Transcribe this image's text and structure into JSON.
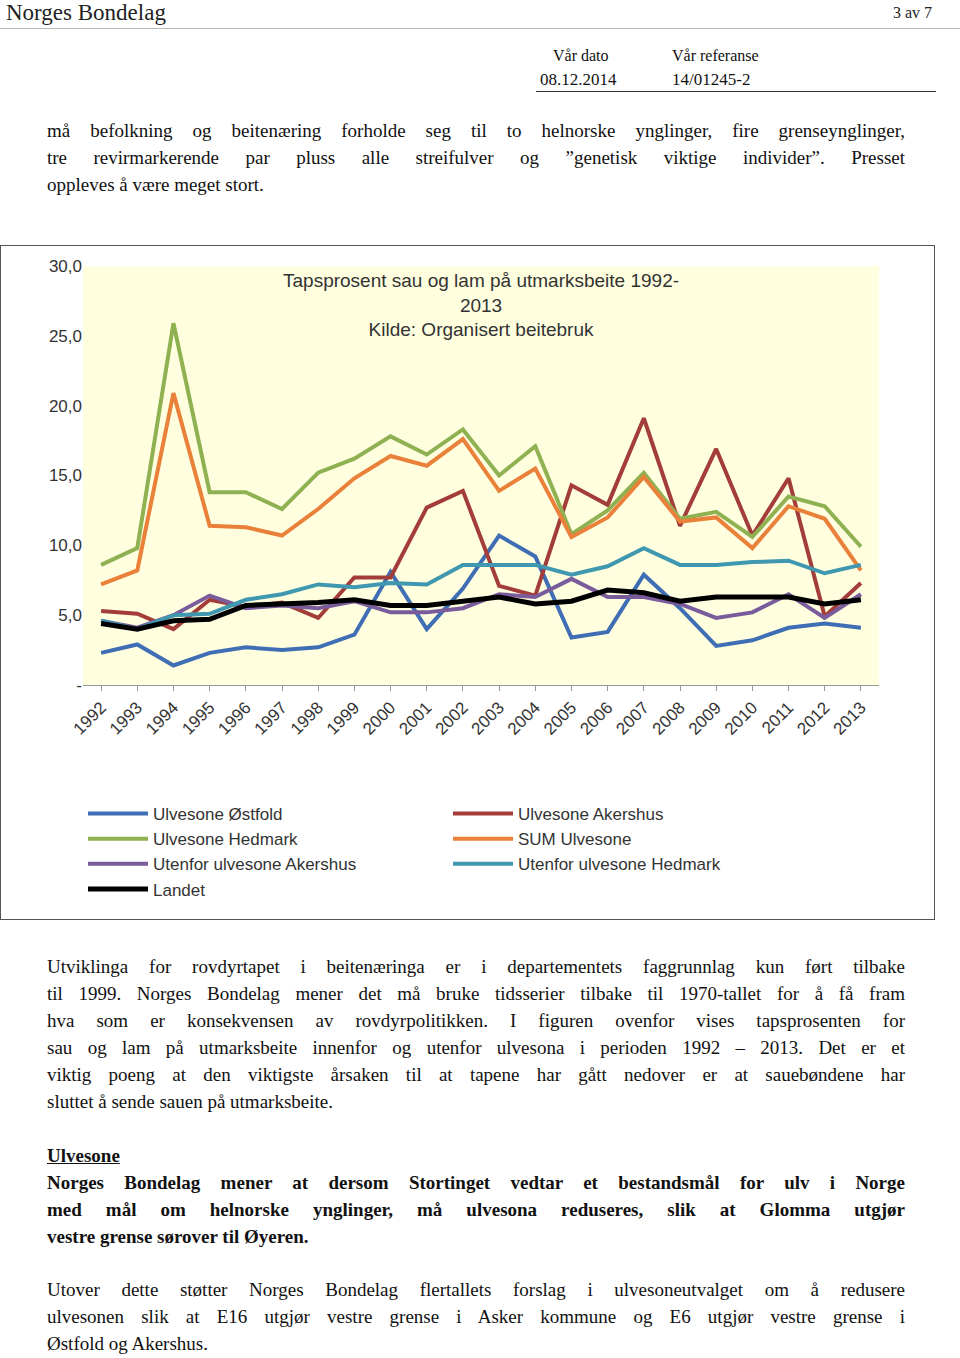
{
  "header": {
    "organization": "Norges Bondelag",
    "page": "3 av 7",
    "date_label": "Vår dato",
    "date": "08.12.2014",
    "ref_label": "Vår referanse",
    "ref": "14/01245-2"
  },
  "intro": {
    "style": "normal",
    "lines": [
      "må befolkning og beitenæring forholde seg til to helnorske ynglinger, fire grenseynglinger,",
      "tre revirmarkerende par pluss alle streifulver og ”genetisk viktige individer”. Presset",
      "oppleves å være meget stort."
    ]
  },
  "chart_data": {
    "type": "line",
    "title": [
      "Tapsprosent sau og lam på utmarksbeite 1992-",
      "2013"
    ],
    "subtitle": "Kilde: Organisert beitebruk",
    "categories": [
      "1992",
      "1993",
      "1994",
      "1995",
      "1996",
      "1997",
      "1998",
      "1999",
      "2000",
      "2001",
      "2002",
      "2003",
      "2004",
      "2005",
      "2006",
      "2007",
      "2008",
      "2009",
      "2010",
      "2011",
      "2012",
      "2013"
    ],
    "series": [
      {
        "name": "Ulvesone Østfold",
        "color": "#3f6eb4",
        "values": [
          2.3,
          2.9,
          1.4,
          2.3,
          2.7,
          2.5,
          2.7,
          3.6,
          8.1,
          4.0,
          6.9,
          10.7,
          9.2,
          3.4,
          3.8,
          7.9,
          5.5,
          2.8,
          3.2,
          4.1,
          4.4,
          4.1
        ]
      },
      {
        "name": "Ulvesone Akershus",
        "color": "#a33d39",
        "values": [
          5.3,
          5.1,
          4.0,
          6.1,
          5.6,
          5.9,
          4.8,
          7.7,
          7.7,
          12.7,
          13.9,
          7.1,
          6.4,
          14.3,
          12.9,
          19.1,
          11.4,
          16.9,
          10.7,
          14.8,
          4.9,
          7.3
        ]
      },
      {
        "name": "Ulvesone Hedmark",
        "color": "#8fb152",
        "values": [
          8.6,
          9.8,
          25.9,
          13.8,
          13.8,
          12.6,
          15.2,
          16.2,
          17.8,
          16.5,
          18.3,
          15.0,
          17.1,
          10.8,
          12.5,
          15.2,
          11.9,
          12.4,
          10.6,
          13.5,
          12.8,
          9.9
        ]
      },
      {
        "name": "SUM Ulvesone",
        "color": "#e9813a",
        "values": [
          7.2,
          8.2,
          20.9,
          11.4,
          11.3,
          10.7,
          12.6,
          14.8,
          16.4,
          15.7,
          17.6,
          13.9,
          15.5,
          10.6,
          12.0,
          14.9,
          11.7,
          12.0,
          9.8,
          12.8,
          11.9,
          8.2
        ]
      },
      {
        "name": "Utenfor ulvesone Akershus",
        "color": "#7a5c9c",
        "values": [
          4.6,
          4.1,
          5.0,
          6.4,
          5.5,
          5.7,
          5.5,
          6.0,
          5.2,
          5.2,
          5.5,
          6.5,
          6.3,
          7.6,
          6.3,
          6.3,
          5.8,
          4.8,
          5.2,
          6.5,
          4.8,
          6.5
        ]
      },
      {
        "name": "Utenfor ulvesone Hedmark",
        "color": "#3f97b0",
        "values": [
          4.6,
          4.0,
          5.0,
          5.1,
          6.1,
          6.5,
          7.2,
          7.0,
          7.3,
          7.2,
          8.6,
          8.6,
          8.6,
          7.9,
          8.5,
          9.8,
          8.6,
          8.6,
          8.8,
          8.9,
          8.0,
          8.6
        ]
      },
      {
        "name": "Landet",
        "color": "#000000",
        "values": [
          4.4,
          4.0,
          4.6,
          4.7,
          5.7,
          5.8,
          5.9,
          6.1,
          5.7,
          5.7,
          6.0,
          6.3,
          5.8,
          6.0,
          6.8,
          6.6,
          6.0,
          6.3,
          6.3,
          6.3,
          5.8,
          6.1
        ]
      }
    ],
    "ylim": [
      0,
      30
    ],
    "yticks": [
      {
        "value": 0,
        "label": "-"
      },
      {
        "value": 5,
        "label": "5,0"
      },
      {
        "value": 10,
        "label": "10,0"
      },
      {
        "value": 15,
        "label": "15,0"
      },
      {
        "value": 20,
        "label": "20,0"
      },
      {
        "value": 25,
        "label": "25,0"
      },
      {
        "value": 30,
        "label": "30,0"
      }
    ],
    "grid": false,
    "legend": "bottom"
  },
  "body": [
    {
      "style": "normal",
      "lines": [
        "Utviklinga for rovdyrtapet i beitenæringa er i departementets faggrunnlag kun ført tilbake",
        "til 1999. Norges Bondelag mener det må bruke tidsserier tilbake til 1970-tallet for å få fram",
        "hva som er konsekvensen av rovdyrpolitikken. I figuren ovenfor vises tapsprosenten for",
        "sau og lam på utmarksbeite innenfor og utenfor ulvesona i perioden 1992 – 2013. Det er et",
        "viktig poeng at den viktigste årsaken til at tapene har gått nedover er at sauebøndene har",
        "sluttet å sende sauen på utmarksbeite."
      ]
    },
    {
      "style": "heading",
      "lines": [
        "Ulvesone"
      ]
    },
    {
      "style": "bold",
      "lines": [
        "Norges Bondelag mener at dersom Stortinget vedtar et bestandsmål for ulv i Norge",
        "med mål om helnorske ynglinger, må ulvesona reduseres, slik at Glomma utgjør",
        "vestre grense sørover til Øyeren."
      ]
    },
    {
      "style": "normal",
      "lines": [
        "Utover dette støtter Norges Bondelag flertallets forslag i ulvesoneutvalget om å redusere",
        "ulvesonen slik at E16 utgjør vestre grense i Asker kommune og E6 utgjør vestre grense i",
        "Østfold og Akershus."
      ]
    }
  ]
}
